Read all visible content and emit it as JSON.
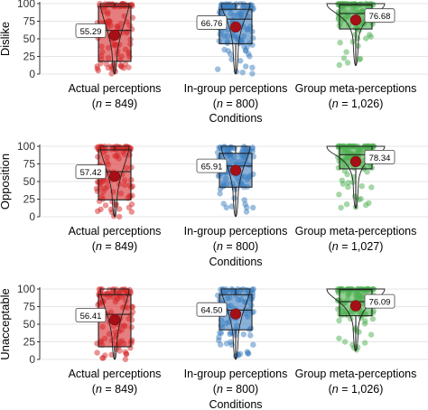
{
  "chart_data": [
    {
      "type": "boxplot",
      "ylabel": "Dislike",
      "xlabel": "Conditions",
      "ylim": [
        0,
        100
      ],
      "yticks": [
        "0",
        "25",
        "50",
        "75",
        "100"
      ],
      "categories": [
        {
          "name": "Actual perceptions",
          "n_label": "n",
          "n_value": "= 849",
          "mean": 55.29,
          "mean_label": "55.29",
          "q1": 18,
          "median": 62,
          "q3": 96,
          "min": 0,
          "max": 100,
          "color": "#d62728"
        },
        {
          "name": "In-group perceptions",
          "n_label": "n",
          "n_value": "= 800",
          "mean": 66.76,
          "mean_label": "66.76",
          "q1": 43,
          "median": 78,
          "q3": 92,
          "min": 0,
          "max": 100,
          "color": "#3b7dbf"
        },
        {
          "name": "Group meta-perceptions",
          "n_label": "n",
          "n_value": "= 1,026",
          "mean": 76.68,
          "mean_label": "76.68",
          "q1": 64,
          "median": 86,
          "q3": 98,
          "min": 12,
          "max": 100,
          "color": "#4caf50"
        }
      ]
    },
    {
      "type": "boxplot",
      "ylabel": "Opposition",
      "xlabel": "Conditions",
      "ylim": [
        0,
        100
      ],
      "yticks": [
        "0",
        "25",
        "50",
        "75",
        "100"
      ],
      "categories": [
        {
          "name": "Actual perceptions",
          "n_label": "n",
          "n_value": "= 849",
          "mean": 57.42,
          "mean_label": "57.42",
          "q1": 24,
          "median": 64,
          "q3": 95,
          "min": 0,
          "max": 100,
          "color": "#d62728"
        },
        {
          "name": "In-group perceptions",
          "n_label": "n",
          "n_value": "= 800",
          "mean": 65.91,
          "mean_label": "65.91",
          "q1": 42,
          "median": 72,
          "q3": 90,
          "min": 0,
          "max": 100,
          "color": "#3b7dbf"
        },
        {
          "name": "Group meta-perceptions",
          "n_label": "n",
          "n_value": "= 1,027",
          "mean": 78.34,
          "mean_label": "78.34",
          "q1": 68,
          "median": 88,
          "q3": 100,
          "min": 12,
          "max": 100,
          "color": "#4caf50"
        }
      ]
    },
    {
      "type": "boxplot",
      "ylabel": "Unacceptable",
      "xlabel": "Conditions",
      "ylim": [
        0,
        100
      ],
      "yticks": [
        "0",
        "25",
        "50",
        "75",
        "100"
      ],
      "categories": [
        {
          "name": "Actual perceptions",
          "n_label": "n",
          "n_value": "= 849",
          "mean": 56.41,
          "mean_label": "56.41",
          "q1": 18,
          "median": 64,
          "q3": 92,
          "min": 0,
          "max": 100,
          "color": "#d62728"
        },
        {
          "name": "In-group perceptions",
          "n_label": "n",
          "n_value": "= 800",
          "mean": 64.5,
          "mean_label": "64.50",
          "q1": 42,
          "median": 70,
          "q3": 92,
          "min": 0,
          "max": 100,
          "color": "#3b7dbf"
        },
        {
          "name": "Group meta-perceptions",
          "n_label": "n",
          "n_value": "= 1,026",
          "mean": 76.09,
          "mean_label": "76.09",
          "q1": 62,
          "median": 82,
          "q3": 99,
          "min": 12,
          "max": 100,
          "color": "#4caf50"
        }
      ]
    }
  ]
}
